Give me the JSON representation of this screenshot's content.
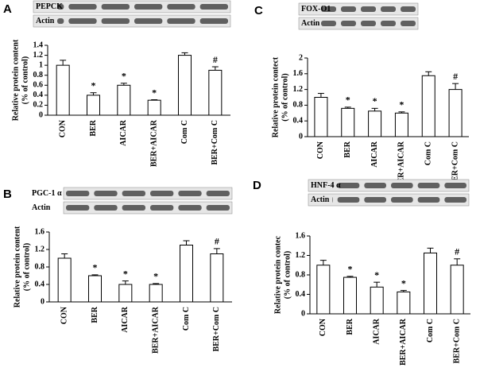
{
  "chart_data": [
    {
      "type": "bar",
      "panel": "A",
      "blot_labels": [
        "PEPCK",
        "Actin"
      ],
      "ylabel": [
        "Relative protein content",
        "(% of control)"
      ],
      "categories": [
        "CON",
        "BER",
        "AICAR",
        "BER+AICAR",
        "Com C",
        "BER+Com C"
      ],
      "values": [
        1.0,
        0.4,
        0.6,
        0.3,
        1.2,
        0.9
      ],
      "errors": [
        0.1,
        0.05,
        0.04,
        0.01,
        0.05,
        0.07
      ],
      "markers": [
        null,
        "*",
        "*",
        "*",
        null,
        "#"
      ],
      "color": "#ffffff",
      "ylim": [
        0,
        1.4
      ],
      "yticks": [
        0,
        0.2,
        0.4,
        0.6,
        0.8,
        1,
        1.2,
        1.4
      ]
    },
    {
      "type": "bar",
      "panel": "B",
      "blot_labels": [
        "PGC-1 α",
        "Actin"
      ],
      "ylabel": [
        "Relative protein content",
        "(% of control)"
      ],
      "categories": [
        "CON",
        "BER",
        "AICAR",
        "BER+AICAR",
        "Com C",
        "BER+Com C"
      ],
      "values": [
        1.0,
        0.6,
        0.4,
        0.4,
        1.3,
        1.1
      ],
      "errors": [
        0.1,
        0.02,
        0.08,
        0.02,
        0.1,
        0.12
      ],
      "markers": [
        null,
        "*",
        "*",
        "*",
        null,
        "#"
      ],
      "color": "#ffffff",
      "ylim": [
        0,
        1.6
      ],
      "yticks": [
        0,
        0.4,
        0.8,
        1.2,
        1.6
      ]
    },
    {
      "type": "bar",
      "panel": "C",
      "blot_labels": [
        "FOX-O1",
        "Actin"
      ],
      "ylabel": [
        "Relative protein contect",
        "(% of control)"
      ],
      "categories": [
        "CON",
        "BER",
        "AICAR",
        "BER+AICAR",
        "Com C",
        "BER+Com C"
      ],
      "values": [
        1.0,
        0.72,
        0.65,
        0.6,
        1.55,
        1.2
      ],
      "errors": [
        0.1,
        0.03,
        0.07,
        0.03,
        0.1,
        0.15
      ],
      "markers": [
        null,
        "*",
        "*",
        "*",
        null,
        "#"
      ],
      "color": "#ffffff",
      "ylim": [
        0,
        2
      ],
      "yticks": [
        0,
        0.4,
        0.8,
        1.2,
        1.6,
        2
      ]
    },
    {
      "type": "bar",
      "panel": "D",
      "blot_labels": [
        "HNF-4 α",
        "Actin"
      ],
      "ylabel": [
        "Relative protein contec",
        "(% of control)"
      ],
      "categories": [
        "CON",
        "BER",
        "AICAR",
        "BER+AICAR",
        "Com C",
        "BER+Com C"
      ],
      "values": [
        1.0,
        0.75,
        0.55,
        0.45,
        1.25,
        1.0
      ],
      "errors": [
        0.1,
        0.02,
        0.1,
        0.03,
        0.1,
        0.13
      ],
      "markers": [
        null,
        "*",
        "*",
        "*",
        null,
        "#"
      ],
      "color": "#ffffff",
      "ylim": [
        0,
        1.6
      ],
      "yticks": [
        0,
        0.4,
        0.8,
        1.2,
        1.6
      ]
    }
  ]
}
